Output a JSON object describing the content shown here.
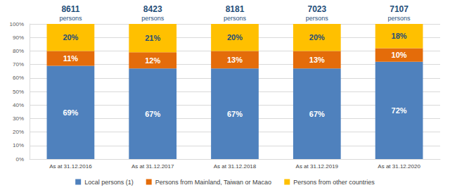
{
  "chart_data": {
    "type": "bar",
    "stacked": true,
    "data_labels": true,
    "grid": true,
    "legend": "bottom",
    "categories": [
      "As at 31.12.2016",
      "As at 31.12.2017",
      "As at 31.12.2018",
      "As at 31.12.2019",
      "As at 31.12.2020"
    ],
    "series": [
      {
        "name": "Local persons (1)",
        "color": "#4f81bd",
        "values": [
          69,
          67,
          67,
          67,
          72
        ],
        "value_labels": [
          "69%",
          "67%",
          "67%",
          "67%",
          "72%"
        ]
      },
      {
        "name": "Persons from Mainland, Taiwan or Macao",
        "color": "#e46c0a",
        "values": [
          11,
          12,
          13,
          13,
          10
        ],
        "value_labels": [
          "11%",
          "12%",
          "13%",
          "13%",
          "10%"
        ]
      },
      {
        "name": "Persons from other countries",
        "color": "#ffc000",
        "values": [
          20,
          21,
          20,
          20,
          18
        ],
        "value_labels": [
          "20%",
          "21%",
          "20%",
          "20%",
          "18%"
        ]
      }
    ],
    "ylim": [
      0,
      100
    ],
    "yticks": [
      {
        "value": 0,
        "label": "0%"
      },
      {
        "value": 10,
        "label": "10%"
      },
      {
        "value": 20,
        "label": "20%"
      },
      {
        "value": 30,
        "label": "30%"
      },
      {
        "value": 40,
        "label": "40%"
      },
      {
        "value": 50,
        "label": "50%"
      },
      {
        "value": 60,
        "label": "60%"
      },
      {
        "value": 70,
        "label": "70%"
      },
      {
        "value": 80,
        "label": "80%"
      },
      {
        "value": 90,
        "label": "90%"
      },
      {
        "value": 100,
        "label": "100%"
      }
    ],
    "totals": [
      8611,
      8423,
      8181,
      7023,
      7107
    ],
    "totals_label": "persons"
  }
}
